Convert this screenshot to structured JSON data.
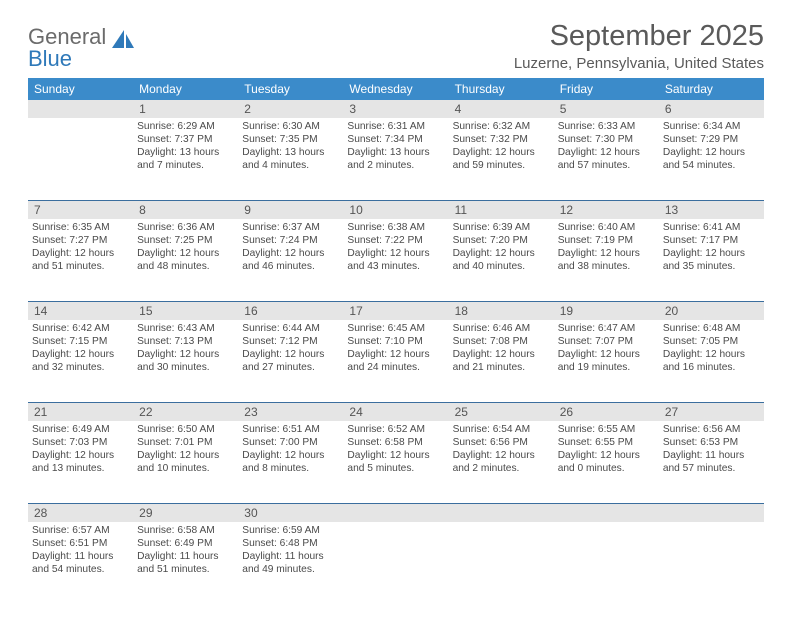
{
  "logo": {
    "word1": "General",
    "word2": "Blue",
    "word1_color": "#6b6b6b",
    "word2_color": "#2f79b9",
    "icon_color": "#2f79b9"
  },
  "header": {
    "title": "September 2025",
    "location": "Luzerne, Pennsylvania, United States",
    "title_fontsize": 29,
    "location_fontsize": 15
  },
  "colors": {
    "dow_bg": "#3b8bca",
    "dow_text": "#ffffff",
    "daynum_bg": "#e5e5e5",
    "week_border": "#3b6e9e",
    "body_text": "#4a4a4a",
    "page_bg": "#ffffff"
  },
  "day_names": [
    "Sunday",
    "Monday",
    "Tuesday",
    "Wednesday",
    "Thursday",
    "Friday",
    "Saturday"
  ],
  "weeks": [
    {
      "nums": [
        "",
        "1",
        "2",
        "3",
        "4",
        "5",
        "6"
      ],
      "cells": [
        {
          "sunrise": "",
          "sunset": "",
          "daylight": ""
        },
        {
          "sunrise": "Sunrise: 6:29 AM",
          "sunset": "Sunset: 7:37 PM",
          "daylight": "Daylight: 13 hours and 7 minutes."
        },
        {
          "sunrise": "Sunrise: 6:30 AM",
          "sunset": "Sunset: 7:35 PM",
          "daylight": "Daylight: 13 hours and 4 minutes."
        },
        {
          "sunrise": "Sunrise: 6:31 AM",
          "sunset": "Sunset: 7:34 PM",
          "daylight": "Daylight: 13 hours and 2 minutes."
        },
        {
          "sunrise": "Sunrise: 6:32 AM",
          "sunset": "Sunset: 7:32 PM",
          "daylight": "Daylight: 12 hours and 59 minutes."
        },
        {
          "sunrise": "Sunrise: 6:33 AM",
          "sunset": "Sunset: 7:30 PM",
          "daylight": "Daylight: 12 hours and 57 minutes."
        },
        {
          "sunrise": "Sunrise: 6:34 AM",
          "sunset": "Sunset: 7:29 PM",
          "daylight": "Daylight: 12 hours and 54 minutes."
        }
      ]
    },
    {
      "nums": [
        "7",
        "8",
        "9",
        "10",
        "11",
        "12",
        "13"
      ],
      "cells": [
        {
          "sunrise": "Sunrise: 6:35 AM",
          "sunset": "Sunset: 7:27 PM",
          "daylight": "Daylight: 12 hours and 51 minutes."
        },
        {
          "sunrise": "Sunrise: 6:36 AM",
          "sunset": "Sunset: 7:25 PM",
          "daylight": "Daylight: 12 hours and 48 minutes."
        },
        {
          "sunrise": "Sunrise: 6:37 AM",
          "sunset": "Sunset: 7:24 PM",
          "daylight": "Daylight: 12 hours and 46 minutes."
        },
        {
          "sunrise": "Sunrise: 6:38 AM",
          "sunset": "Sunset: 7:22 PM",
          "daylight": "Daylight: 12 hours and 43 minutes."
        },
        {
          "sunrise": "Sunrise: 6:39 AM",
          "sunset": "Sunset: 7:20 PM",
          "daylight": "Daylight: 12 hours and 40 minutes."
        },
        {
          "sunrise": "Sunrise: 6:40 AM",
          "sunset": "Sunset: 7:19 PM",
          "daylight": "Daylight: 12 hours and 38 minutes."
        },
        {
          "sunrise": "Sunrise: 6:41 AM",
          "sunset": "Sunset: 7:17 PM",
          "daylight": "Daylight: 12 hours and 35 minutes."
        }
      ]
    },
    {
      "nums": [
        "14",
        "15",
        "16",
        "17",
        "18",
        "19",
        "20"
      ],
      "cells": [
        {
          "sunrise": "Sunrise: 6:42 AM",
          "sunset": "Sunset: 7:15 PM",
          "daylight": "Daylight: 12 hours and 32 minutes."
        },
        {
          "sunrise": "Sunrise: 6:43 AM",
          "sunset": "Sunset: 7:13 PM",
          "daylight": "Daylight: 12 hours and 30 minutes."
        },
        {
          "sunrise": "Sunrise: 6:44 AM",
          "sunset": "Sunset: 7:12 PM",
          "daylight": "Daylight: 12 hours and 27 minutes."
        },
        {
          "sunrise": "Sunrise: 6:45 AM",
          "sunset": "Sunset: 7:10 PM",
          "daylight": "Daylight: 12 hours and 24 minutes."
        },
        {
          "sunrise": "Sunrise: 6:46 AM",
          "sunset": "Sunset: 7:08 PM",
          "daylight": "Daylight: 12 hours and 21 minutes."
        },
        {
          "sunrise": "Sunrise: 6:47 AM",
          "sunset": "Sunset: 7:07 PM",
          "daylight": "Daylight: 12 hours and 19 minutes."
        },
        {
          "sunrise": "Sunrise: 6:48 AM",
          "sunset": "Sunset: 7:05 PM",
          "daylight": "Daylight: 12 hours and 16 minutes."
        }
      ]
    },
    {
      "nums": [
        "21",
        "22",
        "23",
        "24",
        "25",
        "26",
        "27"
      ],
      "cells": [
        {
          "sunrise": "Sunrise: 6:49 AM",
          "sunset": "Sunset: 7:03 PM",
          "daylight": "Daylight: 12 hours and 13 minutes."
        },
        {
          "sunrise": "Sunrise: 6:50 AM",
          "sunset": "Sunset: 7:01 PM",
          "daylight": "Daylight: 12 hours and 10 minutes."
        },
        {
          "sunrise": "Sunrise: 6:51 AM",
          "sunset": "Sunset: 7:00 PM",
          "daylight": "Daylight: 12 hours and 8 minutes."
        },
        {
          "sunrise": "Sunrise: 6:52 AM",
          "sunset": "Sunset: 6:58 PM",
          "daylight": "Daylight: 12 hours and 5 minutes."
        },
        {
          "sunrise": "Sunrise: 6:54 AM",
          "sunset": "Sunset: 6:56 PM",
          "daylight": "Daylight: 12 hours and 2 minutes."
        },
        {
          "sunrise": "Sunrise: 6:55 AM",
          "sunset": "Sunset: 6:55 PM",
          "daylight": "Daylight: 12 hours and 0 minutes."
        },
        {
          "sunrise": "Sunrise: 6:56 AM",
          "sunset": "Sunset: 6:53 PM",
          "daylight": "Daylight: 11 hours and 57 minutes."
        }
      ]
    },
    {
      "nums": [
        "28",
        "29",
        "30",
        "",
        "",
        "",
        ""
      ],
      "cells": [
        {
          "sunrise": "Sunrise: 6:57 AM",
          "sunset": "Sunset: 6:51 PM",
          "daylight": "Daylight: 11 hours and 54 minutes."
        },
        {
          "sunrise": "Sunrise: 6:58 AM",
          "sunset": "Sunset: 6:49 PM",
          "daylight": "Daylight: 11 hours and 51 minutes."
        },
        {
          "sunrise": "Sunrise: 6:59 AM",
          "sunset": "Sunset: 6:48 PM",
          "daylight": "Daylight: 11 hours and 49 minutes."
        },
        {
          "sunrise": "",
          "sunset": "",
          "daylight": ""
        },
        {
          "sunrise": "",
          "sunset": "",
          "daylight": ""
        },
        {
          "sunrise": "",
          "sunset": "",
          "daylight": ""
        },
        {
          "sunrise": "",
          "sunset": "",
          "daylight": ""
        }
      ]
    }
  ]
}
